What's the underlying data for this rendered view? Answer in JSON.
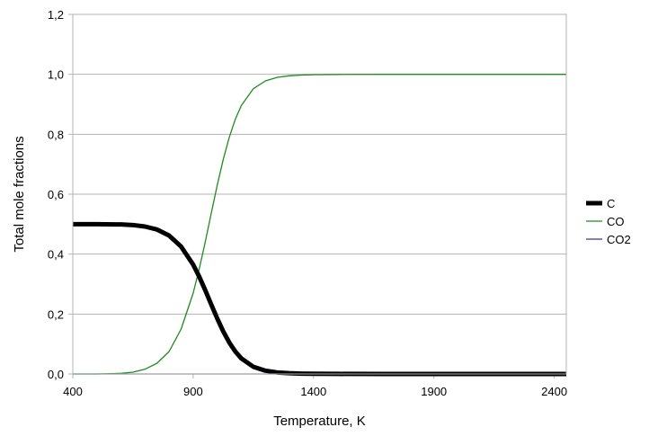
{
  "chart_data": {
    "type": "line",
    "title": "",
    "xlabel": "Temperature, K",
    "ylabel": "Total mole fractions",
    "xlim": [
      400,
      2450
    ],
    "ylim": [
      0,
      1.2
    ],
    "x_ticks": [
      400,
      900,
      1400,
      1900,
      2400
    ],
    "x_tick_labels": [
      "400",
      "900",
      "1400",
      "1900",
      "2400"
    ],
    "y_ticks": [
      0,
      0.2,
      0.4,
      0.6,
      0.8,
      1.0,
      1.2
    ],
    "y_tick_labels": [
      "0,0",
      "0,2",
      "0,4",
      "0,6",
      "0,8",
      "1,0",
      "1,2"
    ],
    "grid": true,
    "legend_position": "right",
    "x": [
      400,
      500,
      600,
      650,
      700,
      750,
      800,
      850,
      900,
      925,
      950,
      975,
      1000,
      1025,
      1050,
      1075,
      1100,
      1150,
      1200,
      1250,
      1300,
      1350,
      1400,
      1500,
      1700,
      1900,
      2100,
      2300,
      2450
    ],
    "series": [
      {
        "name": "C",
        "color": "#000000",
        "values": [
          0.5,
          0.5,
          0.499,
          0.497,
          0.492,
          0.482,
          0.462,
          0.425,
          0.365,
          0.325,
          0.28,
          0.232,
          0.185,
          0.142,
          0.105,
          0.075,
          0.052,
          0.024,
          0.011,
          0.005,
          0.0025,
          0.0013,
          0.0007,
          0.0002,
          0.0,
          0.0,
          0.0,
          0.0,
          0.0
        ]
      },
      {
        "name": "CO",
        "color": "#1e8c1e",
        "values": [
          0.0,
          0.0,
          0.002,
          0.006,
          0.016,
          0.036,
          0.075,
          0.15,
          0.27,
          0.35,
          0.44,
          0.536,
          0.63,
          0.716,
          0.79,
          0.85,
          0.896,
          0.952,
          0.978,
          0.99,
          0.995,
          0.9974,
          0.9986,
          0.9996,
          1.0,
          1.0,
          1.0,
          1.0,
          1.0
        ]
      },
      {
        "name": "CO2",
        "color": "#3333aa",
        "values": [
          0,
          0,
          0,
          0,
          0,
          0,
          0,
          0,
          0,
          0,
          0,
          0,
          0,
          0,
          0,
          0,
          0,
          0,
          0,
          0,
          0,
          0,
          0,
          0,
          0,
          0,
          0,
          0,
          0
        ]
      }
    ]
  }
}
